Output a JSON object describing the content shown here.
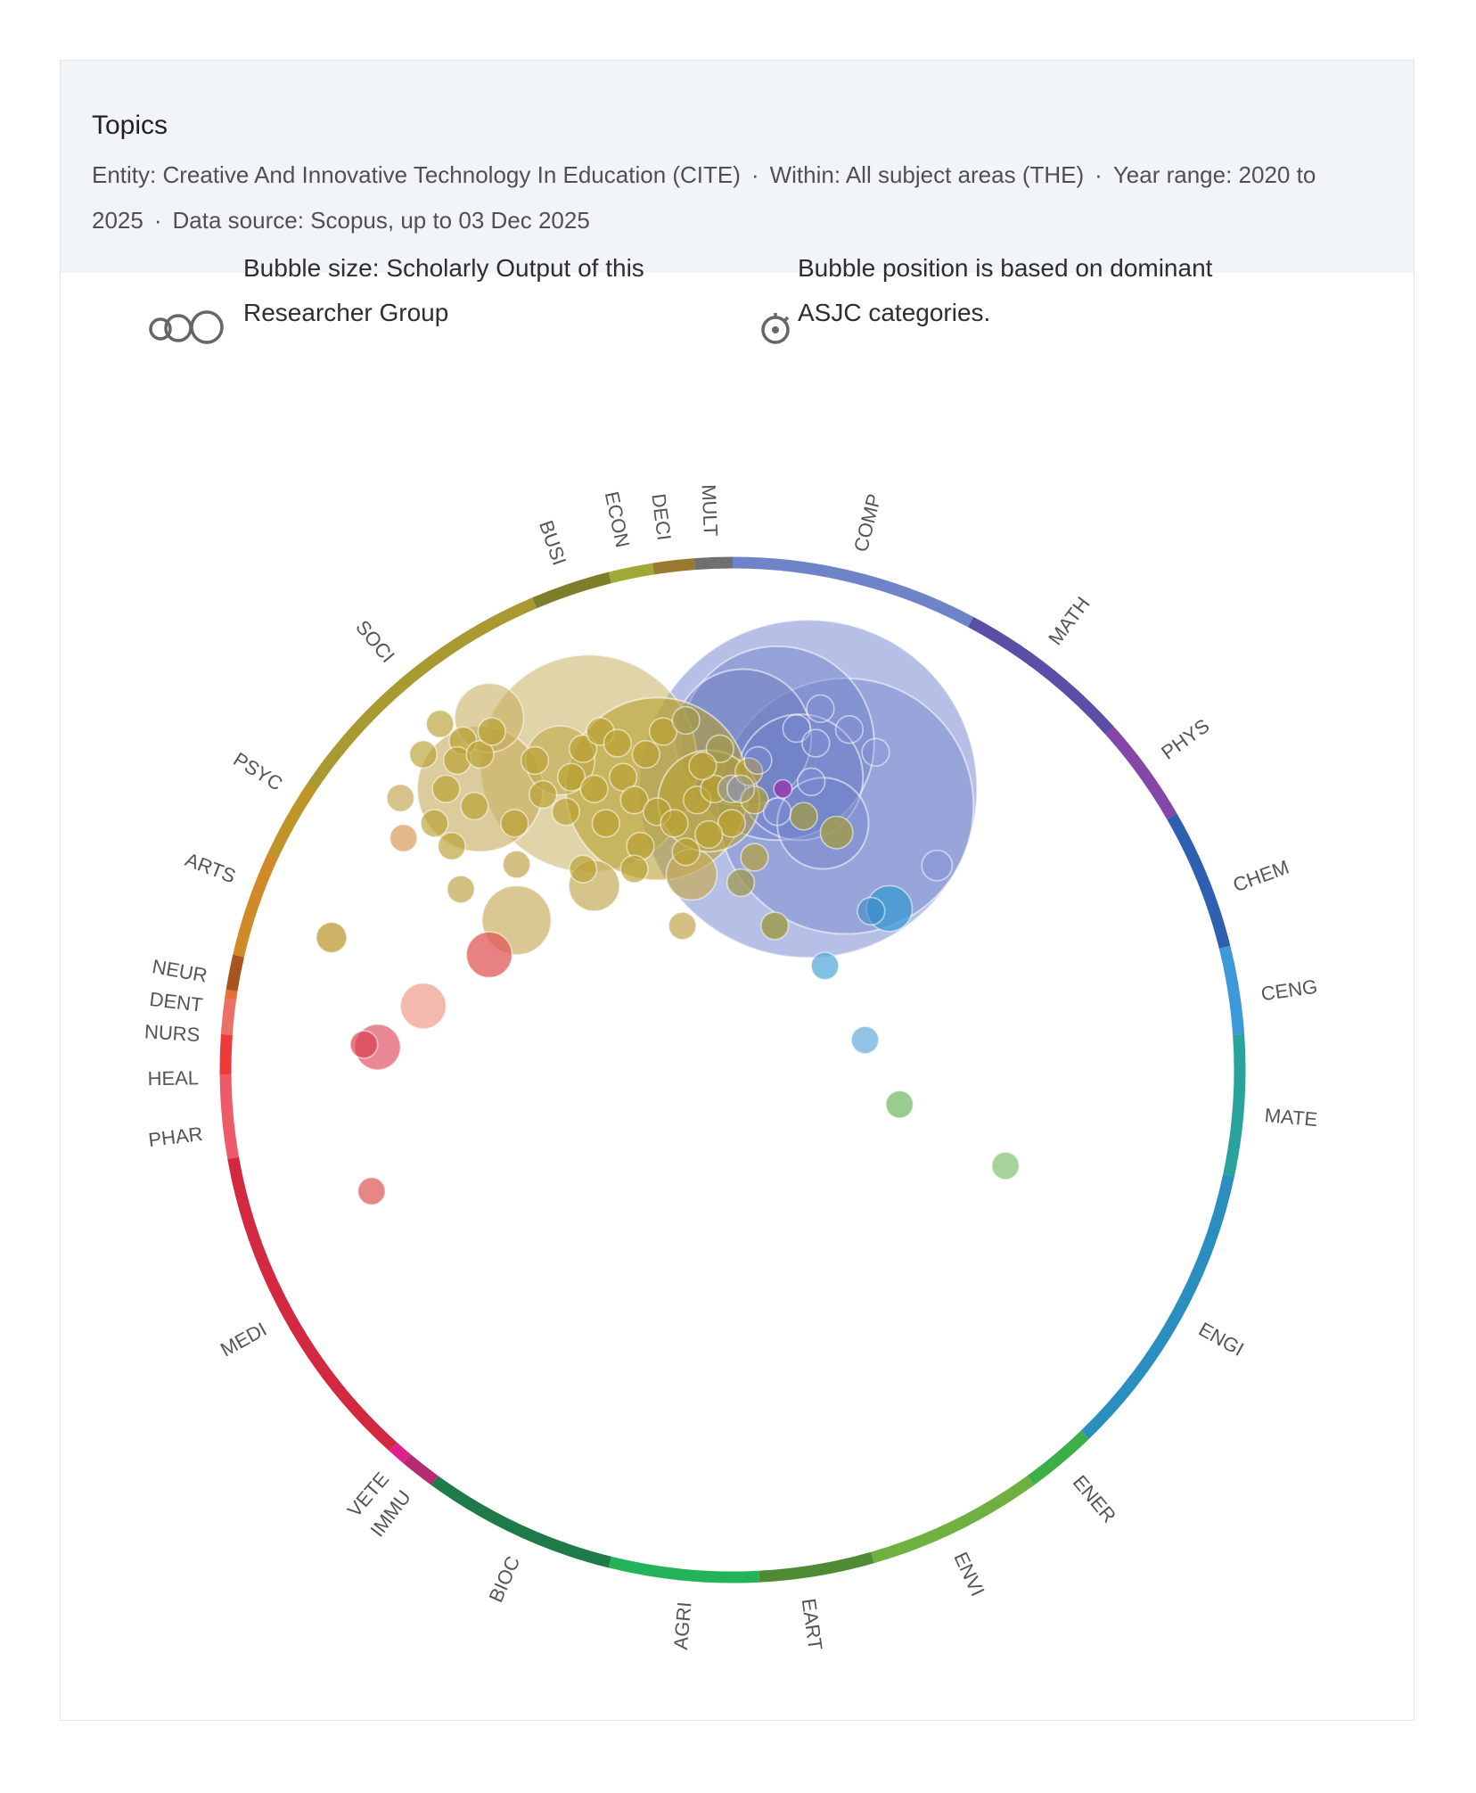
{
  "header": {
    "title": "Topics",
    "entity": "Entity: Creative And Innovative Technology In Education (CITE)",
    "within": "Within: All subject areas (THE)",
    "year_range": "Year range: 2020 to 2025",
    "data_source": "Data source: Scopus, up to 03 Dec 2025",
    "separator": "·"
  },
  "legend": {
    "size_line1": "Bubble size:  Scholarly Output of this",
    "size_line2": "Researcher Group",
    "position_line1": "Bubble position is based on dominant",
    "position_line2": "ASJC categories."
  },
  "chart_data": {
    "type": "bubble-wheel",
    "title": "Topics",
    "note": "bubble x/y in percent of wheel radius (-100..100), size in percent of wheel radius",
    "axis_range": [
      -100,
      100
    ],
    "segments": [
      {
        "label": "COMP",
        "start": 0,
        "end": 28,
        "label_angle": 14,
        "color": "#6f84c8"
      },
      {
        "label": "MATH",
        "start": 28,
        "end": 48,
        "label_angle": 37,
        "color": "#5a4fa6"
      },
      {
        "label": "PHYS",
        "start": 48,
        "end": 60,
        "label_angle": 54,
        "color": "#8447a8"
      },
      {
        "label": "CHEM",
        "start": 60,
        "end": 76,
        "label_angle": 70,
        "color": "#2f5fb0"
      },
      {
        "label": "CENG",
        "start": 76,
        "end": 86,
        "label_angle": 82,
        "color": "#3c9ad8"
      },
      {
        "label": "MATE",
        "start": 86,
        "end": 102,
        "label_angle": 95,
        "color": "#2aa39c"
      },
      {
        "label": "ENGI",
        "start": 102,
        "end": 136,
        "label_angle": 119,
        "color": "#2a8fbf"
      },
      {
        "label": "ENER",
        "start": 136,
        "end": 144,
        "label_angle": 140,
        "color": "#3cb048"
      },
      {
        "label": "ENVI",
        "start": 144,
        "end": 164,
        "label_angle": 155,
        "color": "#70b040"
      },
      {
        "label": "EART",
        "start": 164,
        "end": 177,
        "label_angle": 172,
        "color": "#4f8a34"
      },
      {
        "label": "AGRI",
        "start": 177,
        "end": 194,
        "label_angle": 185,
        "color": "#25b35a"
      },
      {
        "label": "BIOC",
        "start": 194,
        "end": 216,
        "label_angle": 204,
        "color": "#1f7a4a"
      },
      {
        "label": "IMMU",
        "start": 216,
        "end": 220,
        "label_angle": 217.5,
        "color": "#b52a70"
      },
      {
        "label": "VETE",
        "start": 220,
        "end": 222,
        "label_angle": 220.5,
        "color": "#e0208f"
      },
      {
        "label": "MEDI",
        "start": 222,
        "end": 260,
        "label_angle": 241,
        "color": "#d22840"
      },
      {
        "label": "PHAR",
        "start": 260,
        "end": 269.5,
        "label_angle": 263,
        "color": "#ee5a6a"
      },
      {
        "label": "HEAL",
        "start": 269.5,
        "end": 274,
        "label_angle": 269,
        "color": "#ee3a3a"
      },
      {
        "label": "NURS",
        "start": 274,
        "end": 278,
        "label_angle": 273.6,
        "color": "#ea7068"
      },
      {
        "label": "DENT",
        "start": 278,
        "end": 279,
        "label_angle": 276.8,
        "color": "#e87030"
      },
      {
        "label": "NEUR",
        "start": 279,
        "end": 283,
        "label_angle": 280,
        "color": "#a8541e"
      },
      {
        "label": "ARTS",
        "start": 283,
        "end": 295,
        "label_angle": 291,
        "color": "#d08a28"
      },
      {
        "label": "PSYC",
        "start": 295,
        "end": 304,
        "label_angle": 302,
        "color": "#bf952a"
      },
      {
        "label": "SOCI",
        "start": 304,
        "end": 337,
        "label_angle": 320,
        "color": "#a89a30"
      },
      {
        "label": "BUSI",
        "start": 337,
        "end": 346,
        "label_angle": 341,
        "color": "#7e7e2a"
      },
      {
        "label": "ECON",
        "start": 346,
        "end": 351,
        "label_angle": 348,
        "color": "#a0a838"
      },
      {
        "label": "DECI",
        "start": 351,
        "end": 355.7,
        "label_angle": 352.5,
        "color": "#9a7a30"
      },
      {
        "label": "MULT",
        "start": 355.7,
        "end": 360,
        "label_angle": 357.5,
        "color": "#707070"
      }
    ],
    "bubbles": [
      {
        "x": 14.9,
        "y": 55.4,
        "size": 33.3,
        "area": "COMP",
        "color": "#7a8ad0",
        "op": 0.55
      },
      {
        "x": 22.3,
        "y": 52.0,
        "size": 25.2,
        "area": "COMP",
        "color": "#7484cc",
        "op": 0.45
      },
      {
        "x": 8.8,
        "y": 64.4,
        "size": 19.1,
        "area": "COMP",
        "color": "#6d7fc6",
        "op": 0.45
      },
      {
        "x": 2.0,
        "y": 65.5,
        "size": 13.5,
        "area": "COMP",
        "color": "#6778b8",
        "op": 0.45
      },
      {
        "x": 13.3,
        "y": 57.7,
        "size": 12.4,
        "area": "COMP",
        "color": "#6f80c8",
        "op": 0.4
      },
      {
        "x": 17.8,
        "y": 48.6,
        "size": 9,
        "area": "COMP",
        "color": "#6f80c8",
        "op": 0.4
      },
      {
        "x": -28.4,
        "y": 60.4,
        "size": 21.4,
        "area": "SOCI",
        "color": "#c8b060",
        "op": 0.55
      },
      {
        "x": -14.9,
        "y": 55.4,
        "size": 18,
        "area": "SOCI",
        "color": "#b8a030",
        "op": 0.6
      },
      {
        "x": -49.8,
        "y": 55.4,
        "size": 12.4,
        "area": "SOCI",
        "color": "#c4aa58",
        "op": 0.6
      },
      {
        "x": -48,
        "y": 69.4,
        "size": 6.8,
        "area": "SOCI",
        "color": "#c4aa58",
        "op": 0.55
      },
      {
        "x": -42.6,
        "y": 29.5,
        "size": 6.8,
        "area": "SOCI",
        "color": "#c4aa58",
        "op": 0.65
      },
      {
        "x": -27.3,
        "y": 36.3,
        "size": 5,
        "area": "SOCI",
        "color": "#c4aa58",
        "op": 0.7
      },
      {
        "x": -8.1,
        "y": 38.5,
        "size": 5,
        "area": "SOCI",
        "color": "#c4aa58",
        "op": 0.7
      },
      {
        "x": -34,
        "y": 61,
        "size": 6.8,
        "area": "SOCI",
        "color": "#c0a440",
        "op": 0.55
      },
      {
        "x": -4.7,
        "y": 53,
        "size": 10,
        "area": "SOCI",
        "color": "#b8a030",
        "op": 0.5
      },
      {
        "x": -57.7,
        "y": 68.2,
        "size": 2.7,
        "area": "SOCI",
        "color": "#b8a030",
        "op": 0.65
      },
      {
        "x": -53.2,
        "y": 64.9,
        "size": 2.7,
        "area": "SOCI",
        "color": "#b8a030",
        "op": 0.65
      },
      {
        "x": -54.3,
        "y": 61.0,
        "size": 2.7,
        "area": "SOCI",
        "color": "#b8a030",
        "op": 0.65
      },
      {
        "x": -49.8,
        "y": 62.2,
        "size": 2.7,
        "area": "SOCI",
        "color": "#b8a030",
        "op": 0.65
      },
      {
        "x": -56.5,
        "y": 55.4,
        "size": 2.7,
        "area": "SOCI",
        "color": "#b8a030",
        "op": 0.65
      },
      {
        "x": -50.9,
        "y": 52.0,
        "size": 2.7,
        "area": "SOCI",
        "color": "#b8a030",
        "op": 0.65
      },
      {
        "x": -58.8,
        "y": 48.6,
        "size": 2.7,
        "area": "SOCI",
        "color": "#b8a030",
        "op": 0.65
      },
      {
        "x": -55.4,
        "y": 44.1,
        "size": 2.7,
        "area": "SOCI",
        "color": "#b8a030",
        "op": 0.65
      },
      {
        "x": -47.5,
        "y": 66.7,
        "size": 2.7,
        "area": "SOCI",
        "color": "#b8a030",
        "op": 0.65
      },
      {
        "x": -61.0,
        "y": 62.2,
        "size": 2.7,
        "area": "SOCI",
        "color": "#b8a030",
        "op": 0.65
      },
      {
        "x": -65.5,
        "y": 53.6,
        "size": 2.7,
        "area": "SOCI",
        "color": "#c4aa58",
        "op": 0.7
      },
      {
        "x": -43.0,
        "y": 48.6,
        "size": 2.7,
        "area": "SOCI",
        "color": "#b8a030",
        "op": 0.65
      },
      {
        "x": -39.0,
        "y": 61.0,
        "size": 2.7,
        "area": "SOCI",
        "color": "#b8a030",
        "op": 0.65
      },
      {
        "x": -37.4,
        "y": 54.3,
        "size": 2.7,
        "area": "SOCI",
        "color": "#b8a030",
        "op": 0.65
      },
      {
        "x": -31.8,
        "y": 57.7,
        "size": 2.7,
        "area": "SOCI",
        "color": "#b8a030",
        "op": 0.65
      },
      {
        "x": -32.9,
        "y": 50.9,
        "size": 2.7,
        "area": "SOCI",
        "color": "#b8a030",
        "op": 0.65
      },
      {
        "x": -29.5,
        "y": 63.3,
        "size": 2.7,
        "area": "SOCI",
        "color": "#b8a030",
        "op": 0.65
      },
      {
        "x": -26.1,
        "y": 66.7,
        "size": 2.7,
        "area": "SOCI",
        "color": "#b8a030",
        "op": 0.65
      },
      {
        "x": -22.7,
        "y": 64.4,
        "size": 2.7,
        "area": "SOCI",
        "color": "#b8a030",
        "op": 0.65
      },
      {
        "x": -21.6,
        "y": 57.7,
        "size": 2.7,
        "area": "SOCI",
        "color": "#b8a030",
        "op": 0.65
      },
      {
        "x": -19.4,
        "y": 53.2,
        "size": 2.7,
        "area": "SOCI",
        "color": "#b8a030",
        "op": 0.65
      },
      {
        "x": -27.3,
        "y": 55.4,
        "size": 2.7,
        "area": "SOCI",
        "color": "#b8a030",
        "op": 0.65
      },
      {
        "x": -17.1,
        "y": 62.2,
        "size": 2.7,
        "area": "SOCI",
        "color": "#b8a030",
        "op": 0.65
      },
      {
        "x": -13.7,
        "y": 66.7,
        "size": 2.7,
        "area": "SOCI",
        "color": "#b8a030",
        "op": 0.65
      },
      {
        "x": -9.2,
        "y": 68.9,
        "size": 2.7,
        "area": "SOCI",
        "color": "#a09a50",
        "op": 0.65
      },
      {
        "x": -14.9,
        "y": 50.9,
        "size": 2.7,
        "area": "SOCI",
        "color": "#b8a030",
        "op": 0.65
      },
      {
        "x": -11.5,
        "y": 48.6,
        "size": 2.7,
        "area": "SOCI",
        "color": "#b8a030",
        "op": 0.65
      },
      {
        "x": -7.0,
        "y": 53.2,
        "size": 2.7,
        "area": "SOCI",
        "color": "#b8a030",
        "op": 0.65
      },
      {
        "x": -3.6,
        "y": 55.4,
        "size": 2.7,
        "area": "SOCI",
        "color": "#b8a030",
        "op": 0.65
      },
      {
        "x": -2.5,
        "y": 63.3,
        "size": 2.7,
        "area": "SOCI",
        "color": "#a09a50",
        "op": 0.65
      },
      {
        "x": -5.9,
        "y": 59.9,
        "size": 2.7,
        "area": "SOCI",
        "color": "#b8a030",
        "op": 0.65
      },
      {
        "x": -0.2,
        "y": 55.4,
        "size": 2.7,
        "area": "SOCI",
        "color": "#9a9a90",
        "op": 0.7
      },
      {
        "x": 3.2,
        "y": 58.8,
        "size": 2.7,
        "area": "SOCI",
        "color": "#b8a030",
        "op": 0.65
      },
      {
        "x": 4.3,
        "y": 53.2,
        "size": 2.7,
        "area": "SOCI",
        "color": "#b8a030",
        "op": 0.65
      },
      {
        "x": -0.2,
        "y": 48.6,
        "size": 2.7,
        "area": "SOCI",
        "color": "#b8a030",
        "op": 0.65
      },
      {
        "x": -4.7,
        "y": 46.4,
        "size": 2.7,
        "area": "SOCI",
        "color": "#b8a030",
        "op": 0.65
      },
      {
        "x": -9.2,
        "y": 43.0,
        "size": 2.7,
        "area": "SOCI",
        "color": "#b8a030",
        "op": 0.65
      },
      {
        "x": -18.2,
        "y": 44.1,
        "size": 2.7,
        "area": "SOCI",
        "color": "#b8a030",
        "op": 0.65
      },
      {
        "x": -25.0,
        "y": 48.6,
        "size": 2.7,
        "area": "SOCI",
        "color": "#b8a030",
        "op": 0.65
      },
      {
        "x": -29.5,
        "y": 39.6,
        "size": 2.7,
        "area": "SOCI",
        "color": "#b8a030",
        "op": 0.65
      },
      {
        "x": -19.4,
        "y": 39.6,
        "size": 2.7,
        "area": "SOCI",
        "color": "#b8a030",
        "op": 0.65
      },
      {
        "x": 1.6,
        "y": 36.9,
        "size": 2.7,
        "area": "SOCI",
        "color": "#a09a50",
        "op": 0.75
      },
      {
        "x": 4.3,
        "y": 41.9,
        "size": 2.7,
        "area": "SOCI",
        "color": "#b8a030",
        "op": 0.65
      },
      {
        "x": 20.5,
        "y": 46.8,
        "size": 3.2,
        "area": "SOCI",
        "color": "#a09a50",
        "op": 0.85
      },
      {
        "x": 14.0,
        "y": 50.0,
        "size": 2.7,
        "area": "SOCI",
        "color": "#a09a50",
        "op": 0.8
      },
      {
        "x": 8.3,
        "y": 28.4,
        "size": 2.7,
        "area": "SOCI",
        "color": "#a09a50",
        "op": 0.85
      },
      {
        "x": -9.9,
        "y": 28.4,
        "size": 2.7,
        "area": "SOCI",
        "color": "#c4aa58",
        "op": 0.75
      },
      {
        "x": -53.6,
        "y": 35.6,
        "size": 2.7,
        "area": "SOCI",
        "color": "#c4aa58",
        "op": 0.75
      },
      {
        "x": -42.6,
        "y": 40.5,
        "size": 2.7,
        "area": "SOCI",
        "color": "#c4aa58",
        "op": 0.75
      },
      {
        "x": -79.1,
        "y": 26.1,
        "size": 3,
        "area": "SOCI",
        "color": "#c0a040",
        "op": 0.8
      },
      {
        "x": -64.9,
        "y": 45.7,
        "size": 2.7,
        "area": "ARTS",
        "color": "#e0a870",
        "op": 0.8
      },
      {
        "x": 12.6,
        "y": 67.3,
        "size": 2.7,
        "area": "COMP",
        "color": "#8090d8",
        "op": 0.3
      },
      {
        "x": 17.3,
        "y": 71.2,
        "size": 2.7,
        "area": "COMP",
        "color": "#8090d8",
        "op": 0.3
      },
      {
        "x": 23.0,
        "y": 67.1,
        "size": 2.7,
        "area": "COMP",
        "color": "#8090d8",
        "op": 0.3
      },
      {
        "x": 28.2,
        "y": 62.6,
        "size": 2.7,
        "area": "COMP",
        "color": "#8090d8",
        "op": 0.3
      },
      {
        "x": 16.4,
        "y": 64.4,
        "size": 2.7,
        "area": "COMP",
        "color": "#8090d8",
        "op": 0.3
      },
      {
        "x": 15.5,
        "y": 56.8,
        "size": 2.7,
        "area": "COMP",
        "color": "#8090d8",
        "op": 0.3
      },
      {
        "x": 5.0,
        "y": 61.0,
        "size": 2.7,
        "area": "COMP",
        "color": "#8090d8",
        "op": 0.3
      },
      {
        "x": 1.6,
        "y": 55.4,
        "size": 2.7,
        "area": "COMP",
        "color": "#8090d8",
        "op": 0.3
      },
      {
        "x": 8.8,
        "y": 50.9,
        "size": 2.7,
        "area": "COMP",
        "color": "#8090d8",
        "op": 0.3
      },
      {
        "x": 40.3,
        "y": 40.3,
        "size": 3,
        "area": "COMP",
        "color": "#8090d8",
        "op": 0.45
      },
      {
        "x": 9.9,
        "y": 55.4,
        "size": 1.8,
        "area": "PHYS",
        "color": "#9040b0",
        "op": 0.9
      },
      {
        "x": 30.9,
        "y": 31.8,
        "size": 4.5,
        "area": "CENG",
        "color": "#3a9ad0",
        "op": 0.75
      },
      {
        "x": 27.3,
        "y": 31.3,
        "size": 2.7,
        "area": "CENG",
        "color": "#3a8ac8",
        "op": 0.6
      },
      {
        "x": 18.2,
        "y": 20.5,
        "size": 2.7,
        "area": "CENG",
        "color": "#5aaad8",
        "op": 0.75
      },
      {
        "x": 26.1,
        "y": 5.9,
        "size": 2.7,
        "area": "CENG",
        "color": "#70b0dc",
        "op": 0.75
      },
      {
        "x": 32.9,
        "y": -6.8,
        "size": 2.7,
        "area": "ENVI",
        "color": "#80c070",
        "op": 0.8
      },
      {
        "x": 53.8,
        "y": -18.9,
        "size": 2.7,
        "area": "ENVI",
        "color": "#90c880",
        "op": 0.8
      },
      {
        "x": -48,
        "y": 22.7,
        "size": 4.5,
        "area": "MEDI",
        "color": "#e05858",
        "op": 0.75
      },
      {
        "x": -61,
        "y": 12.6,
        "size": 4.5,
        "area": "NURS",
        "color": "#f0a090",
        "op": 0.75
      },
      {
        "x": -70,
        "y": 4.5,
        "size": 4.5,
        "area": "MEDI",
        "color": "#e06070",
        "op": 0.75
      },
      {
        "x": -72.7,
        "y": 5.0,
        "size": 2.7,
        "area": "MEDI",
        "color": "#d84050",
        "op": 0.7
      },
      {
        "x": -71.2,
        "y": -23.9,
        "size": 2.7,
        "area": "MEDI",
        "color": "#e06868",
        "op": 0.8
      }
    ]
  }
}
